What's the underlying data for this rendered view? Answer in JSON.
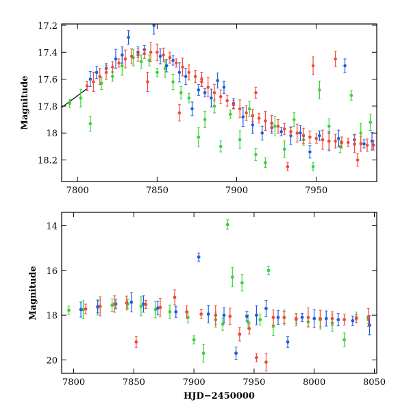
{
  "chart_data": [
    {
      "id": "top",
      "type": "scatter",
      "ylabel": "Magnitude",
      "xlabel": "",
      "xlim": [
        7790,
        7988
      ],
      "ylim": [
        18.36,
        17.19
      ],
      "y_inverted": true,
      "x_ticks": [
        7800,
        7850,
        7900,
        7950
      ],
      "x_tick_labels": [
        "7800",
        "7850",
        "7900",
        "7950"
      ],
      "y_ticks": [
        17.2,
        17.4,
        17.6,
        17.8,
        18,
        18.2
      ],
      "y_tick_labels": [
        "17.2",
        "17.4",
        "17.6",
        "17.8",
        "18",
        "18.2"
      ],
      "model_line": {
        "x": [
          7790,
          7806
        ],
        "y": [
          17.81,
          17.67
        ]
      },
      "series": [
        {
          "color": "#3ad13a",
          "points": [
            [
              7795,
              17.78
            ],
            [
              7802,
              17.74
            ],
            [
              7808,
              17.93
            ],
            [
              7815,
              17.63
            ],
            [
              7822,
              17.58
            ],
            [
              7828,
              17.5
            ],
            [
              7835,
              17.44
            ],
            [
              7840,
              17.47
            ],
            [
              7845,
              17.46
            ],
            [
              7850,
              17.55
            ],
            [
              7855,
              17.52
            ],
            [
              7860,
              17.62
            ],
            [
              7865,
              17.7
            ],
            [
              7870,
              17.74
            ],
            [
              7876,
              18.03
            ],
            [
              7880,
              17.9
            ],
            [
              7886,
              17.8
            ],
            [
              7890,
              18.1
            ],
            [
              7896,
              17.86
            ],
            [
              7902,
              18.05
            ],
            [
              7908,
              17.82
            ],
            [
              7912,
              18.16
            ],
            [
              7918,
              18.22
            ],
            [
              7924,
              17.95
            ],
            [
              7930,
              18.12
            ],
            [
              7936,
              17.9
            ],
            [
              7942,
              18.05
            ],
            [
              7948,
              18.25
            ],
            [
              7952,
              17.68
            ],
            [
              7958,
              17.95
            ],
            [
              7965,
              18.1
            ],
            [
              7972,
              17.72
            ],
            [
              7978,
              18.0
            ],
            [
              7984,
              17.92
            ]
          ]
        },
        {
          "color": "#1a5fe0",
          "points": [
            [
              7808,
              17.6
            ],
            [
              7812,
              17.55
            ],
            [
              7818,
              17.52
            ],
            [
              7824,
              17.45
            ],
            [
              7828,
              17.42
            ],
            [
              7832,
              17.29
            ],
            [
              7838,
              17.4
            ],
            [
              7842,
              17.38
            ],
            [
              7848,
              17.2
            ],
            [
              7852,
              17.43
            ],
            [
              7856,
              17.5
            ],
            [
              7860,
              17.46
            ],
            [
              7864,
              17.55
            ],
            [
              7868,
              17.58
            ],
            [
              7872,
              17.82
            ],
            [
              7876,
              17.68
            ],
            [
              7880,
              17.7
            ],
            [
              7884,
              17.74
            ],
            [
              7888,
              17.61
            ],
            [
              7892,
              17.66
            ],
            [
              7898,
              17.78
            ],
            [
              7904,
              17.88
            ],
            [
              7910,
              17.94
            ],
            [
              7916,
              18.0
            ],
            [
              7922,
              17.96
            ],
            [
              7928,
              17.99
            ],
            [
              7934,
              18.02
            ],
            [
              7940,
              18.0
            ],
            [
              7946,
              18.14
            ],
            [
              7952,
              18.02
            ],
            [
              7958,
              18.06
            ],
            [
              7964,
              18.04
            ],
            [
              7968,
              17.5
            ],
            [
              7974,
              18.05
            ],
            [
              7980,
              18.08
            ],
            [
              7985,
              18.06
            ]
          ]
        },
        {
          "color": "#f04a38",
          "points": [
            [
              7806,
              17.65
            ],
            [
              7810,
              17.62
            ],
            [
              7814,
              17.58
            ],
            [
              7818,
              17.55
            ],
            [
              7822,
              17.51
            ],
            [
              7826,
              17.48
            ],
            [
              7830,
              17.45
            ],
            [
              7834,
              17.43
            ],
            [
              7838,
              17.42
            ],
            [
              7842,
              17.41
            ],
            [
              7846,
              17.4
            ],
            [
              7850,
              17.4
            ],
            [
              7854,
              17.42
            ],
            [
              7858,
              17.44
            ],
            [
              7862,
              17.48
            ],
            [
              7866,
              17.51
            ],
            [
              7870,
              17.55
            ],
            [
              7874,
              17.58
            ],
            [
              7878,
              17.62
            ],
            [
              7882,
              17.66
            ],
            [
              7886,
              17.7
            ],
            [
              7890,
              17.73
            ],
            [
              7894,
              17.76
            ],
            [
              7898,
              17.79
            ],
            [
              7902,
              17.82
            ],
            [
              7906,
              17.85
            ],
            [
              7910,
              17.87
            ],
            [
              7914,
              17.89
            ],
            [
              7918,
              17.91
            ],
            [
              7922,
              17.93
            ],
            [
              7926,
              17.95
            ],
            [
              7930,
              17.97
            ],
            [
              7934,
              17.99
            ],
            [
              7938,
              18.0
            ],
            [
              7942,
              18.02
            ],
            [
              7946,
              18.03
            ],
            [
              7950,
              18.04
            ],
            [
              7954,
              18.05
            ],
            [
              7958,
              18.06
            ],
            [
              7962,
              18.06
            ],
            [
              7966,
              18.07
            ],
            [
              7970,
              18.07
            ],
            [
              7974,
              18.08
            ],
            [
              7978,
              18.08
            ],
            [
              7982,
              18.09
            ],
            [
              7986,
              18.09
            ],
            [
              7844,
              17.62
            ],
            [
              7864,
              17.85
            ],
            [
              7878,
              17.6
            ],
            [
              7912,
              17.7
            ],
            [
              7932,
              18.25
            ],
            [
              7948,
              17.5
            ],
            [
              7962,
              17.45
            ],
            [
              7976,
              18.2
            ]
          ]
        }
      ]
    },
    {
      "id": "bottom",
      "type": "scatter",
      "ylabel": "Magnitude",
      "xlabel": "HJD−2450000",
      "xlim": [
        7790,
        8052
      ],
      "ylim": [
        20.6,
        13.4
      ],
      "y_inverted": true,
      "x_ticks": [
        7800,
        7850,
        7900,
        7950,
        8000,
        8050
      ],
      "x_tick_labels": [
        "7800",
        "7850",
        "7900",
        "7950",
        "8000",
        "8050"
      ],
      "y_ticks": [
        14,
        16,
        18,
        20
      ],
      "y_tick_labels": [
        "14",
        "16",
        "18",
        "20"
      ],
      "series": [
        {
          "color": "#3ad13a",
          "points": [
            [
              7796,
              17.78
            ],
            [
              7808,
              17.75
            ],
            [
              7820,
              17.65
            ],
            [
              7832,
              17.55
            ],
            [
              7845,
              17.5
            ],
            [
              7856,
              17.6
            ],
            [
              7868,
              17.75
            ],
            [
              7880,
              17.85
            ],
            [
              7895,
              18.1
            ],
            [
              7900,
              19.1
            ],
            [
              7908,
              19.7
            ],
            [
              7918,
              18.2
            ],
            [
              7924,
              18.4
            ],
            [
              7928,
              13.95
            ],
            [
              7932,
              16.3
            ],
            [
              7940,
              16.55
            ],
            [
              7945,
              18.3
            ],
            [
              7955,
              18.2
            ],
            [
              7962,
              16.0
            ],
            [
              7966,
              18.5
            ],
            [
              7975,
              18.1
            ],
            [
              7985,
              18.2
            ],
            [
              7995,
              18.3
            ],
            [
              8005,
              18.2
            ],
            [
              8015,
              18.35
            ],
            [
              8025,
              19.1
            ],
            [
              8035,
              18.1
            ],
            [
              8045,
              18.2
            ]
          ]
        },
        {
          "color": "#1a5fe0",
          "points": [
            [
              7806,
              17.75
            ],
            [
              7820,
              17.62
            ],
            [
              7835,
              17.5
            ],
            [
              7848,
              17.42
            ],
            [
              7858,
              17.5
            ],
            [
              7870,
              17.68
            ],
            [
              7885,
              17.85
            ],
            [
              7904,
              15.4
            ],
            [
              7912,
              17.95
            ],
            [
              7925,
              18.0
            ],
            [
              7935,
              19.7
            ],
            [
              7944,
              18.05
            ],
            [
              7952,
              18.0
            ],
            [
              7960,
              17.7
            ],
            [
              7970,
              18.1
            ],
            [
              7978,
              19.2
            ],
            [
              7990,
              18.1
            ],
            [
              8000,
              18.15
            ],
            [
              8010,
              18.15
            ],
            [
              8020,
              18.2
            ],
            [
              8032,
              18.25
            ],
            [
              8046,
              18.45
            ]
          ]
        },
        {
          "color": "#f04a38",
          "points": [
            [
              7810,
              17.72
            ],
            [
              7822,
              17.6
            ],
            [
              7834,
              17.5
            ],
            [
              7844,
              17.45
            ],
            [
              7852,
              19.2
            ],
            [
              7860,
              17.52
            ],
            [
              7872,
              17.65
            ],
            [
              7884,
              17.2
            ],
            [
              7894,
              17.85
            ],
            [
              7906,
              17.95
            ],
            [
              7918,
              18.0
            ],
            [
              7930,
              18.05
            ],
            [
              7938,
              18.85
            ],
            [
              7946,
              18.6
            ],
            [
              7952,
              19.9
            ],
            [
              7960,
              20.1
            ],
            [
              7966,
              18.1
            ],
            [
              7975,
              18.1
            ],
            [
              7985,
              18.15
            ],
            [
              7995,
              18.1
            ],
            [
              8005,
              18.15
            ],
            [
              8015,
              18.15
            ],
            [
              8025,
              18.2
            ],
            [
              8035,
              18.15
            ],
            [
              8045,
              18.1
            ]
          ]
        }
      ]
    }
  ]
}
